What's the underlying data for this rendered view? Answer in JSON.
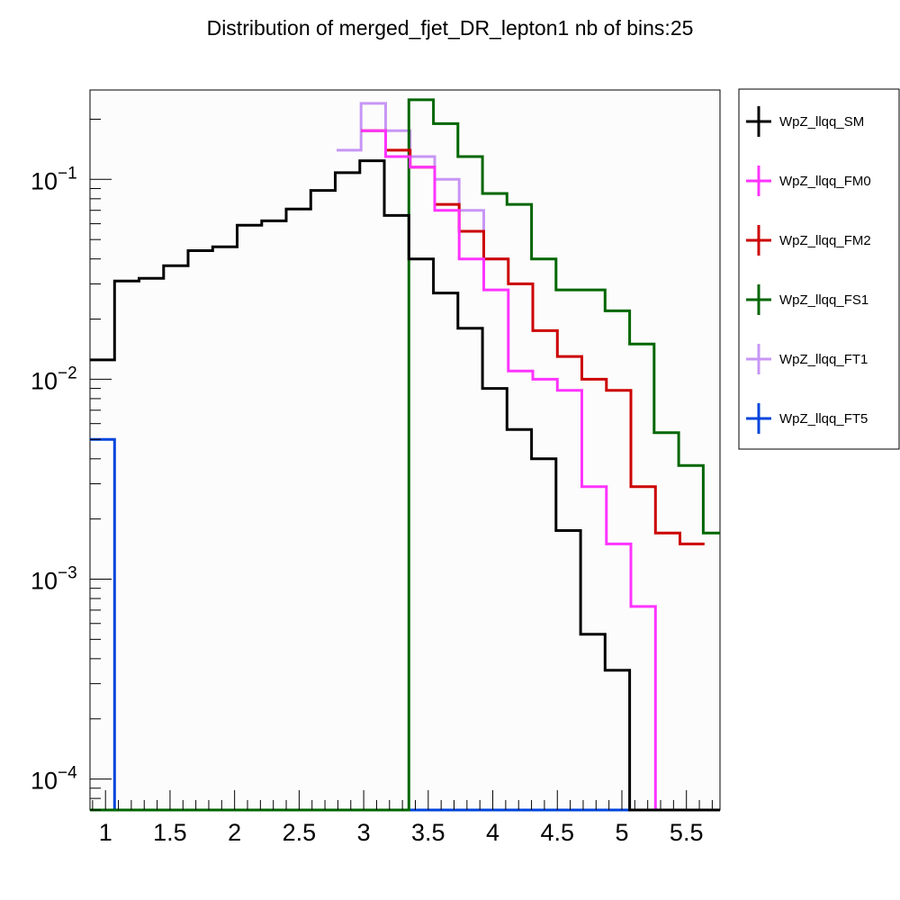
{
  "chart_data": {
    "type": "line",
    "style": "step-histogram",
    "title": "Distribution of merged_fjet_DR_lepton1 nb of bins:25",
    "xlabel": "",
    "ylabel": "",
    "xlim": [
      0.88,
      5.76
    ],
    "ylim": [
      7e-05,
      0.28
    ],
    "yscale": "log",
    "grid": false,
    "legend_position": "right",
    "bin_width": 0.19,
    "x_ticks": [
      {
        "value": 1,
        "label": "1"
      },
      {
        "value": 1.5,
        "label": "1.5"
      },
      {
        "value": 2,
        "label": "2"
      },
      {
        "value": 2.5,
        "label": "2.5"
      },
      {
        "value": 3,
        "label": "3"
      },
      {
        "value": 3.5,
        "label": "3.5"
      },
      {
        "value": 4,
        "label": "4"
      },
      {
        "value": 4.5,
        "label": "4.5"
      },
      {
        "value": 5,
        "label": "5"
      },
      {
        "value": 5.5,
        "label": "5.5"
      }
    ],
    "y_ticks": [
      {
        "value": 0.1,
        "base": "10",
        "exp": "−1"
      },
      {
        "value": 0.01,
        "base": "10",
        "exp": "−2"
      },
      {
        "value": 0.001,
        "base": "10",
        "exp": "−3"
      },
      {
        "value": 0.0001,
        "base": "10",
        "exp": "−4"
      }
    ],
    "series": [
      {
        "name": "WpZ_llqq_FT5",
        "color": "#0044dd",
        "x_start": 0.88,
        "values": [
          0.005,
          7e-05,
          7e-05,
          7e-05,
          7e-05,
          7e-05,
          7e-05,
          7e-05,
          7e-05,
          7e-05,
          7e-05,
          7e-05,
          7e-05,
          7e-05,
          7e-05,
          7e-05,
          7e-05,
          7e-05,
          7e-05,
          7e-05,
          7e-05,
          7e-05,
          7e-05,
          7e-05,
          7e-05,
          7e-05
        ]
      },
      {
        "name": "WpZ_llqq_FT1",
        "color": "#c796f5",
        "x_start": 2.79,
        "values": [
          0.14,
          0.24,
          0.175,
          0.13,
          0.1,
          0.07,
          0.04
        ]
      },
      {
        "name": "WpZ_llqq_FS1",
        "color": "#006600",
        "x_start": 0.88,
        "values": [
          7e-05,
          7e-05,
          7e-05,
          7e-05,
          7e-05,
          7e-05,
          7e-05,
          7e-05,
          7e-05,
          7e-05,
          7e-05,
          7e-05,
          7e-05,
          0.25,
          0.19,
          0.13,
          0.085,
          0.075,
          0.04,
          0.028,
          0.028,
          0.022,
          0.015,
          0.0054,
          0.0037,
          0.0017
        ]
      },
      {
        "name": "WpZ_llqq_FM2",
        "color": "#cc0000",
        "x_start": 2.98,
        "values": [
          0.175,
          0.14,
          0.115,
          0.075,
          0.055,
          0.04,
          0.03,
          0.0175,
          0.013,
          0.01,
          0.0088,
          0.0029,
          0.0017,
          0.0015
        ]
      },
      {
        "name": "WpZ_llqq_FM0",
        "color": "#ff33ff",
        "x_start": 2.98,
        "values": [
          0.175,
          0.13,
          0.115,
          0.07,
          0.04,
          0.028,
          0.011,
          0.01,
          0.0088,
          0.0029,
          0.0015,
          0.00073,
          7e-05,
          7e-05
        ]
      },
      {
        "name": "WpZ_llqq_SM",
        "color": "#000000",
        "x_start": 0.88,
        "values": [
          0.0125,
          0.031,
          0.032,
          0.037,
          0.044,
          0.046,
          0.059,
          0.062,
          0.071,
          0.088,
          0.108,
          0.124,
          0.066,
          0.04,
          0.027,
          0.018,
          0.009,
          0.0056,
          0.004,
          0.00175,
          0.00053,
          0.00035,
          7e-05,
          7e-05,
          7e-05,
          7e-05
        ]
      }
    ],
    "legend": [
      {
        "name": "WpZ_llqq_SM",
        "color": "#000000"
      },
      {
        "name": "WpZ_llqq_FM0",
        "color": "#ff33ff"
      },
      {
        "name": "WpZ_llqq_FM2",
        "color": "#cc0000"
      },
      {
        "name": "WpZ_llqq_FS1",
        "color": "#006600"
      },
      {
        "name": "WpZ_llqq_FT1",
        "color": "#c796f5"
      },
      {
        "name": "WpZ_llqq_FT5",
        "color": "#0044dd"
      }
    ]
  }
}
